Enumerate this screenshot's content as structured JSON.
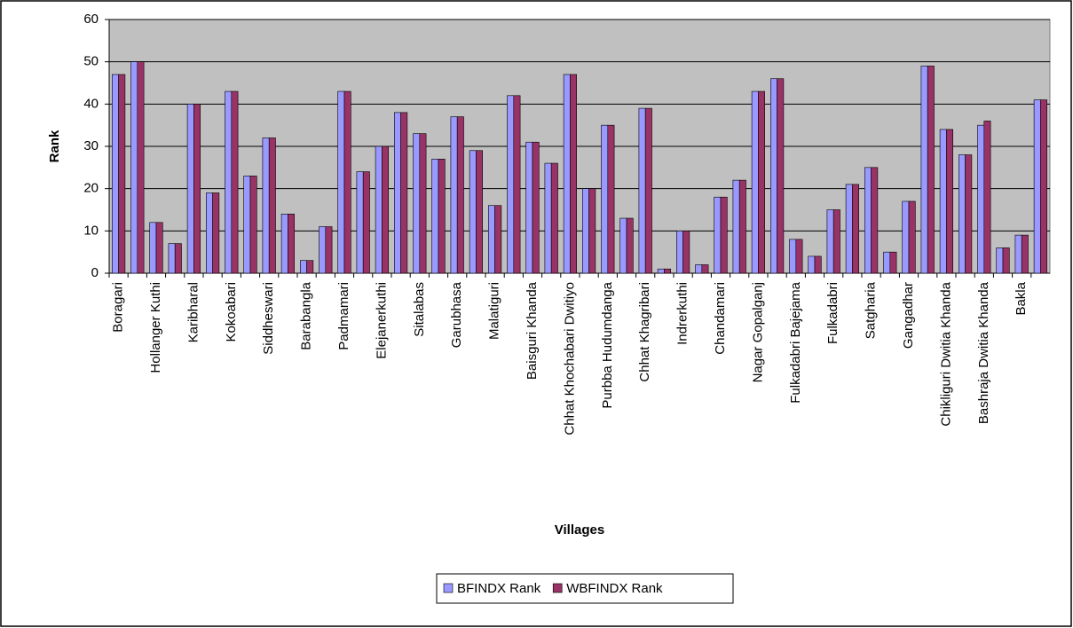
{
  "chart_data": {
    "type": "bar",
    "x_label": "Villages",
    "y_label": "Rank",
    "categories": [
      "Boragari",
      null,
      "Hollanger Kuthi",
      null,
      "Karibharal",
      null,
      "Kokoabari",
      null,
      "Siddheswari",
      null,
      "Barabangla",
      null,
      "Padmamari",
      null,
      "Elejanerkuthi",
      null,
      "Sitalabas",
      null,
      "Garubhasa",
      null,
      "Malatiguri",
      null,
      "Baisguri Khanda",
      null,
      "Chhat Khochabari Dwitiyo",
      null,
      "Purbba Hudumdanga",
      null,
      "Chhat Khagribari",
      null,
      "Indrerkuthi",
      null,
      "Chandamari",
      null,
      "Nagar Gopalganj",
      null,
      "Fulkadabri Bajejama",
      null,
      "Fulkadabri",
      null,
      "Satgharia",
      null,
      "Gangadhar",
      null,
      "Chikliguri Dwitia Khanda",
      null,
      "Bashraja Dwitia Khanda",
      null,
      "Bakla",
      null
    ],
    "series": [
      {
        "name": "BFINDX Rank",
        "color": "#9999ff",
        "values": [
          47,
          50,
          12,
          7,
          40,
          19,
          43,
          23,
          32,
          14,
          3,
          11,
          43,
          24,
          30,
          38,
          33,
          27,
          37,
          29,
          16,
          42,
          31,
          26,
          47,
          20,
          35,
          13,
          39,
          1,
          10,
          2,
          18,
          22,
          43,
          46,
          8,
          4,
          15,
          21,
          25,
          5,
          17,
          49,
          34,
          28,
          35,
          6,
          9,
          41
        ]
      },
      {
        "name": "WBFINDX Rank",
        "color": "#993366",
        "values": [
          47,
          50,
          12,
          7,
          40,
          19,
          43,
          23,
          32,
          14,
          3,
          11,
          43,
          24,
          30,
          38,
          33,
          27,
          37,
          29,
          16,
          42,
          31,
          26,
          47,
          20,
          35,
          13,
          39,
          1,
          10,
          2,
          18,
          22,
          43,
          46,
          8,
          4,
          15,
          21,
          25,
          5,
          17,
          49,
          34,
          28,
          36,
          6,
          9,
          41
        ]
      }
    ],
    "ylim": [
      0,
      60
    ],
    "yticks": [
      0,
      10,
      20,
      30,
      40,
      50,
      60
    ],
    "grid": true,
    "plot_background": "#c0c0c0",
    "legend": "bottom"
  }
}
